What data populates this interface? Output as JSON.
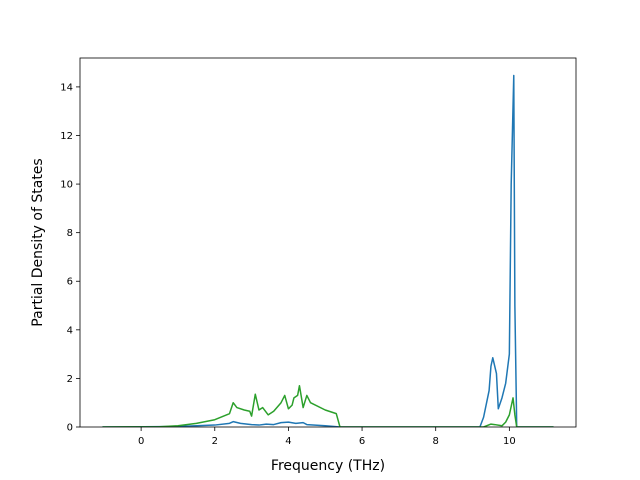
{
  "chart_data": {
    "type": "line",
    "x_label": "Frequency (THz)",
    "y_label": "Partial Density of States",
    "xlim": [
      -1.66,
      11.81
    ],
    "ylim": [
      0,
      15.19
    ],
    "xticks": [
      0,
      2,
      4,
      6,
      8,
      10
    ],
    "yticks": [
      0,
      2,
      4,
      6,
      8,
      10,
      12,
      14
    ],
    "series": [
      {
        "color": "#1f77b4",
        "x": [
          -1.05,
          1.0,
          2.0,
          2.4,
          2.5,
          2.7,
          3.0,
          3.2,
          3.4,
          3.6,
          3.8,
          4.0,
          4.2,
          4.4,
          4.5,
          5.0,
          5.4,
          9.2,
          9.3,
          9.45,
          9.5,
          9.55,
          9.65,
          9.7,
          9.8,
          9.9,
          10.0,
          10.05,
          10.12,
          10.15,
          10.2,
          11.2
        ],
        "values": [
          0,
          0.02,
          0.08,
          0.15,
          0.22,
          0.15,
          0.1,
          0.08,
          0.12,
          0.1,
          0.18,
          0.2,
          0.15,
          0.18,
          0.1,
          0.05,
          0,
          0,
          0.4,
          1.5,
          2.5,
          2.85,
          2.2,
          0.75,
          1.2,
          1.8,
          3.0,
          10.0,
          14.47,
          5.0,
          0,
          0
        ]
      },
      {
        "color": "#2ca02c",
        "x": [
          -1.05,
          0.5,
          1.0,
          1.5,
          2.0,
          2.4,
          2.5,
          2.6,
          2.8,
          2.95,
          3.0,
          3.1,
          3.2,
          3.3,
          3.45,
          3.6,
          3.8,
          3.9,
          4.0,
          4.1,
          4.15,
          4.25,
          4.3,
          4.4,
          4.5,
          4.6,
          5.0,
          5.3,
          5.4,
          9.3,
          9.5,
          9.6,
          9.8,
          9.9,
          10.0,
          10.1,
          10.15,
          10.2,
          11.2
        ],
        "values": [
          0,
          0.01,
          0.05,
          0.15,
          0.3,
          0.55,
          1.0,
          0.8,
          0.7,
          0.65,
          0.45,
          1.35,
          0.7,
          0.8,
          0.5,
          0.65,
          1.0,
          1.3,
          0.75,
          0.9,
          1.2,
          1.3,
          1.7,
          0.8,
          1.3,
          1.0,
          0.7,
          0.55,
          0,
          0,
          0.12,
          0.1,
          0.05,
          0.2,
          0.5,
          1.2,
          0.5,
          0,
          0
        ]
      }
    ]
  }
}
